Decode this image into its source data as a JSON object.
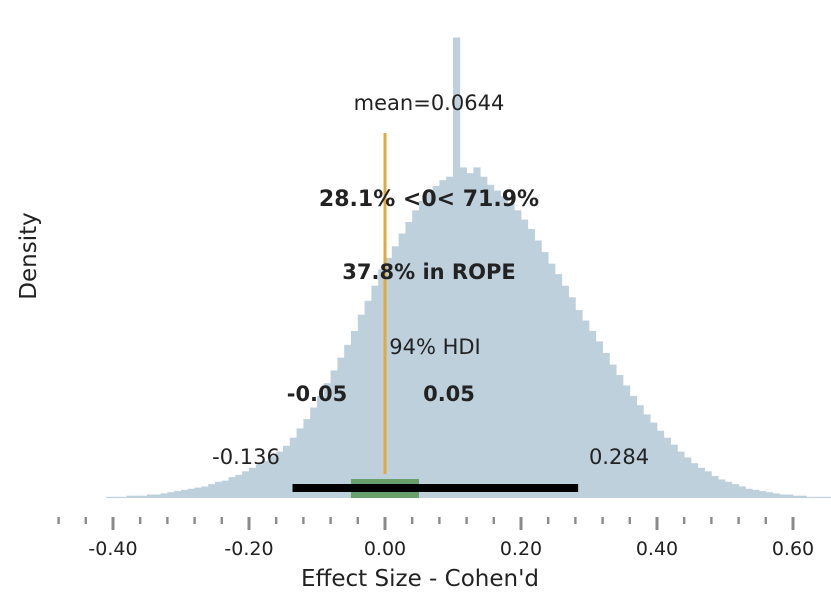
{
  "chart_data": {
    "type": "histogram",
    "xlabel": "Effect Size - Cohen'd",
    "ylabel": "Density",
    "xlim": [
      -0.5,
      0.6
    ],
    "x_ticks": [
      "-0.40",
      "-0.20",
      "0.00",
      "0.20",
      "0.40",
      "0.60"
    ],
    "x_tick_values": [
      -0.4,
      -0.2,
      0.0,
      0.2,
      0.4,
      0.6
    ],
    "minor_tick_step": 0.04,
    "grid": false,
    "bin_width": 0.01,
    "bins_start": -0.41,
    "densities": [
      0.01,
      0.01,
      0.01,
      0.02,
      0.02,
      0.02,
      0.03,
      0.03,
      0.04,
      0.05,
      0.06,
      0.07,
      0.08,
      0.09,
      0.1,
      0.12,
      0.14,
      0.15,
      0.18,
      0.2,
      0.23,
      0.26,
      0.29,
      0.32,
      0.36,
      0.4,
      0.45,
      0.52,
      0.6,
      0.68,
      0.78,
      0.88,
      0.99,
      1.1,
      1.21,
      1.32,
      1.44,
      1.58,
      1.7,
      1.83,
      1.97,
      2.07,
      2.17,
      2.28,
      2.38,
      2.48,
      2.56,
      2.63,
      2.69,
      2.74,
      2.77,
      3.97,
      2.85,
      2.8,
      2.85,
      2.77,
      2.7,
      2.65,
      2.6,
      2.54,
      2.48,
      2.4,
      2.32,
      2.22,
      2.12,
      2.02,
      1.93,
      1.83,
      1.73,
      1.62,
      1.53,
      1.44,
      1.35,
      1.25,
      1.15,
      1.06,
      0.97,
      0.88,
      0.8,
      0.72,
      0.65,
      0.58,
      0.52,
      0.46,
      0.4,
      0.35,
      0.3,
      0.26,
      0.23,
      0.19,
      0.16,
      0.14,
      0.12,
      0.1,
      0.08,
      0.07,
      0.06,
      0.05,
      0.04,
      0.03,
      0.03,
      0.02,
      0.02,
      0.01,
      0.01,
      0.01,
      0.01,
      0.01,
      0.01
    ],
    "bar_color": "#bdd0dc",
    "mean": 0.0644,
    "mean_label": "mean=0.0644",
    "reference_value": 0.0,
    "reference_color": "#e2a93b",
    "reference_label": "28.1% <0< 71.9%",
    "rope": [
      -0.05,
      0.05
    ],
    "rope_label": "37.8% in ROPE",
    "rope_low_label": "-0.05",
    "rope_high_label": "0.05",
    "rope_color": "#5f9a5f",
    "rope_text_color": "#2e8b00",
    "hdi": [
      -0.136,
      0.284
    ],
    "hdi_label": "94% HDI",
    "hdi_low_label": "-0.136",
    "hdi_high_label": "0.284",
    "hdi_color": "#000000"
  }
}
